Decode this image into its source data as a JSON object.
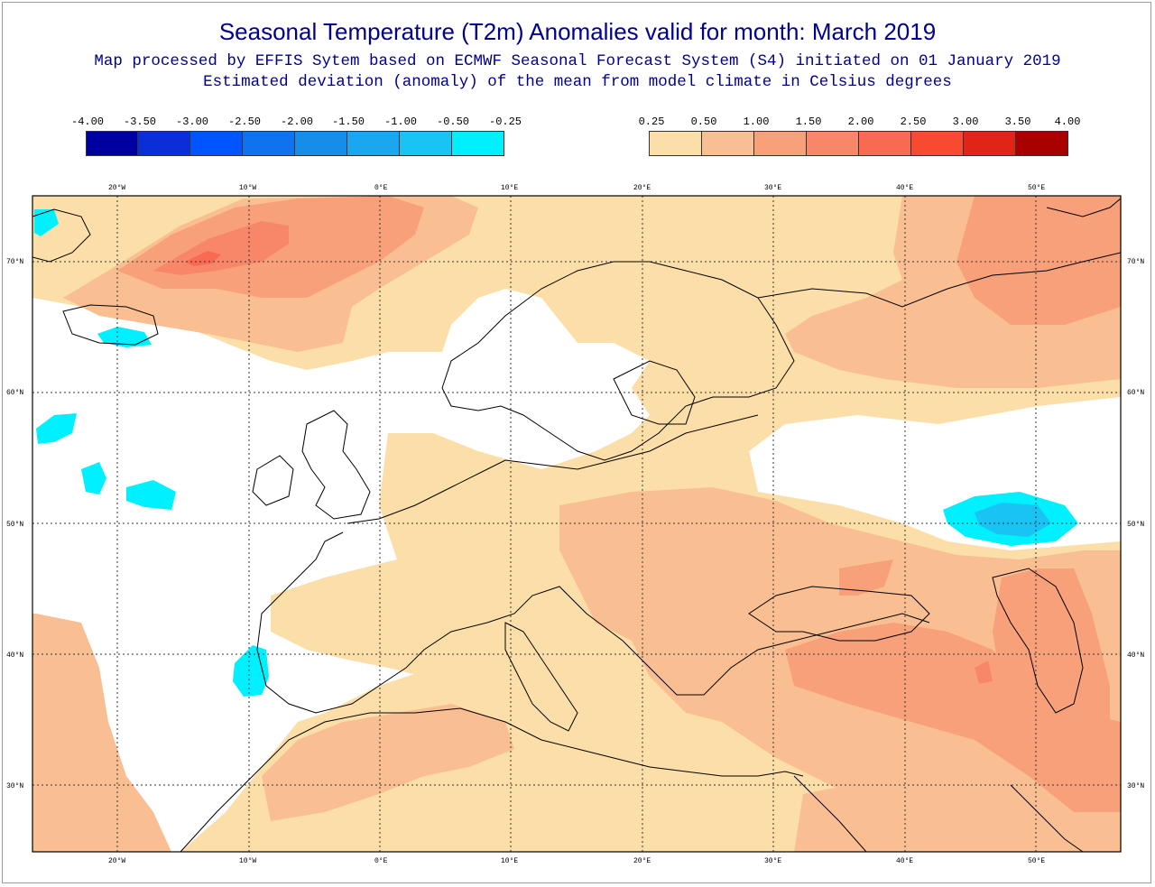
{
  "title": "Seasonal Temperature (T2m) Anomalies valid for month: March 2019",
  "subtitle_line1": "Map processed by EFFIS Sytem based on ECMWF Seasonal Forecast System (S4) initiated on 01 January 2019",
  "subtitle_line2": "Estimated deviation (anomaly) of the mean from model climate in Celsius degrees",
  "legend_negative": {
    "labels": [
      "-4.00",
      "-3.50",
      "-3.00",
      "-2.50",
      "-2.00",
      "-1.50",
      "-1.00",
      "-0.50",
      "-0.25"
    ],
    "colors": [
      "#0000a0",
      "#0a2ed8",
      "#0055ff",
      "#0f73f0",
      "#168de8",
      "#19a8f0",
      "#19c4f4",
      "#00f0ff"
    ]
  },
  "legend_positive": {
    "labels": [
      "0.25",
      "0.50",
      "1.00",
      "1.50",
      "2.00",
      "2.50",
      "3.00",
      "3.50",
      "4.00"
    ],
    "colors": [
      "#fcdfa8",
      "#f9bf92",
      "#f8a07a",
      "#f8876a",
      "#f86a52",
      "#f74a30",
      "#e02418",
      "#a90000"
    ]
  },
  "lon_labels": [
    "20°W",
    "10°W",
    "0°E",
    "10°E",
    "20°E",
    "30°E",
    "40°E",
    "50°E"
  ],
  "lat_labels": [
    "70°N",
    "60°N",
    "50°N",
    "40°N",
    "30°N"
  ],
  "map_colors": {
    "neutral": "#ffffff",
    "anomaly_0_25": "#fcdfa8",
    "anomaly_0_50": "#f9bf92",
    "anomaly_1_00": "#f8a07a",
    "anomaly_1_50": "#f8876a",
    "anomaly_2_00": "#f86a52",
    "negative_0_25": "#00f0ff",
    "negative_0_50": "#19c4f4",
    "coastline": "#000000",
    "gridline": "#333333"
  }
}
